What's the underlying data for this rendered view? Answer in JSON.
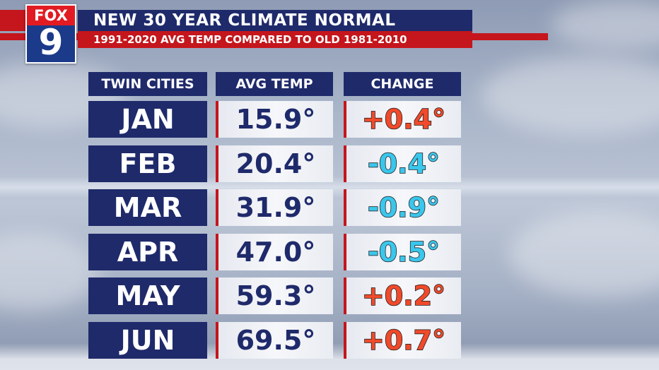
{
  "logo": {
    "brand": "FOX",
    "channel": "9"
  },
  "header": {
    "title": "NEW 30 YEAR CLIMATE NORMAL",
    "subtitle": "1991-2020 AVG TEMP COMPARED TO OLD 1981-2010"
  },
  "table": {
    "columns": [
      "TWIN CITIES",
      "AVG TEMP",
      "CHANGE"
    ],
    "rows": [
      {
        "month": "JAN",
        "avg_temp": "15.9°",
        "change": "+0.4°"
      },
      {
        "month": "FEB",
        "avg_temp": "20.4°",
        "change": "-0.4°"
      },
      {
        "month": "MAR",
        "avg_temp": "31.9°",
        "change": "-0.9°"
      },
      {
        "month": "APR",
        "avg_temp": "47.0°",
        "change": "-0.5°"
      },
      {
        "month": "MAY",
        "avg_temp": "59.3°",
        "change": "+0.2°"
      },
      {
        "month": "JUN",
        "avg_temp": "69.5°",
        "change": "+0.7°"
      }
    ]
  },
  "colors": {
    "navy": "#1f2a6b",
    "brand_red": "#c4161c",
    "positive_change": "#f04a2a",
    "negative_change": "#3bc6ec"
  }
}
